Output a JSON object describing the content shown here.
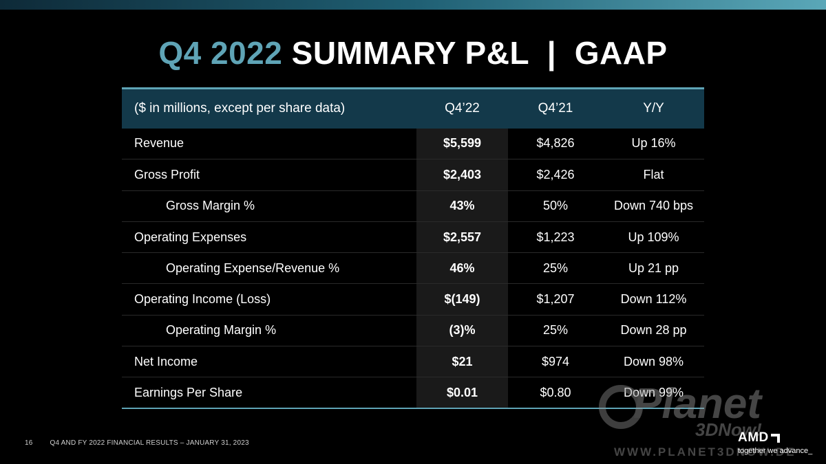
{
  "title": {
    "accent": "Q4 2022",
    "main": "SUMMARY P&L  |  GAAP"
  },
  "table": {
    "header": {
      "label": "($ in millions, except per share data)",
      "col1": "Q4’22",
      "col2": "Q4’21",
      "col3": "Y/Y"
    },
    "rows": [
      {
        "label": "Revenue",
        "indent": false,
        "q4_22": "$5,599",
        "q4_21": "$4,826",
        "yy": "Up 16%"
      },
      {
        "label": "Gross Profit",
        "indent": false,
        "q4_22": "$2,403",
        "q4_21": "$2,426",
        "yy": "Flat"
      },
      {
        "label": "Gross Margin %",
        "indent": true,
        "q4_22": "43%",
        "q4_21": "50%",
        "yy": "Down 740 bps"
      },
      {
        "label": "Operating Expenses",
        "indent": false,
        "q4_22": "$2,557",
        "q4_21": "$1,223",
        "yy": "Up 109%"
      },
      {
        "label": "Operating Expense/Revenue %",
        "indent": true,
        "q4_22": "46%",
        "q4_21": "25%",
        "yy": "Up 21 pp"
      },
      {
        "label": "Operating Income (Loss)",
        "indent": false,
        "q4_22": "$(149)",
        "q4_21": "$1,207",
        "yy": "Down 112%"
      },
      {
        "label": "Operating Margin %",
        "indent": true,
        "q4_22": "(3)%",
        "q4_21": "25%",
        "yy": "Down 28 pp"
      },
      {
        "label": "Net Income",
        "indent": false,
        "q4_22": "$21",
        "q4_21": "$974",
        "yy": "Down 98%"
      },
      {
        "label": "Earnings Per Share",
        "indent": false,
        "q4_22": "$0.01",
        "q4_21": "$0.80",
        "yy": "Down 99%"
      }
    ]
  },
  "footer": {
    "page_number": "16",
    "text": "Q4 AND FY 2022 FINANCIAL RESULTS – JANUARY 31, 2023"
  },
  "logo": {
    "brand": "AMD",
    "tagline": "together we advance_"
  },
  "watermark": {
    "line1": "Planet",
    "line2": "3DNow!",
    "url": "WWW.PLANET3DNOW.DE"
  },
  "colors": {
    "accent": "#5fa4b6",
    "header_bg": "#13394a",
    "background": "#000000"
  }
}
